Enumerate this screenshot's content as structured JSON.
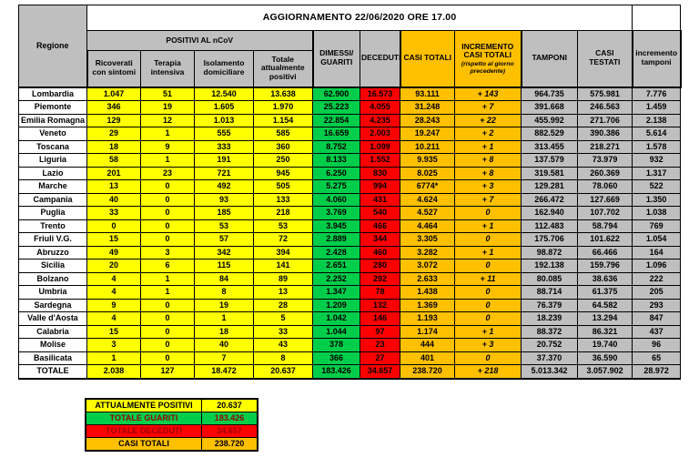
{
  "title": "AGGIORNAMENTO 22/06/2020 ORE 17.00",
  "colors": {
    "gray": "#BFBFBF",
    "yellow": "#FFFF00",
    "green": "#00CE4A",
    "red": "#FF0000",
    "gold": "#FFC000",
    "dark_red_text": "#9C0006",
    "increment_text": "#595959"
  },
  "table": {
    "headers": {
      "regione": "Regione",
      "positivi_group": "POSITIVI AL nCoV",
      "ricoverati": "Ricoverati con sintomi",
      "terapia": "Terapia intensiva",
      "isolamento": "Isolamento domiciliare",
      "totale_positivi": "Totale attualmente positivi",
      "dimessi": "DIMESSI/ GUARITI",
      "deceduti": "DECEDUTI",
      "casi_totali": "CASI TOTALI",
      "incremento_casi": "INCREMENTO CASI TOTALI",
      "incremento_casi_note": "(rispetto al giorno precedente)",
      "tamponi": "TAMPONI",
      "casi_testati": "CASI TESTATI",
      "incremento_tamponi": "incremento tamponi"
    },
    "rows": [
      {
        "regione": "Lombardia",
        "ricoverati": "1.047",
        "terapia": "51",
        "isolamento": "12.540",
        "totale_positivi": "13.638",
        "dimessi": "62.900",
        "deceduti": "16.573",
        "casi_totali": "93.111",
        "incremento": "+ 143",
        "tamponi": "964.735",
        "casi_testati": "575.981",
        "incremento_tamponi": "7.776"
      },
      {
        "regione": "Piemonte",
        "ricoverati": "346",
        "terapia": "19",
        "isolamento": "1.605",
        "totale_positivi": "1.970",
        "dimessi": "25.223",
        "deceduti": "4.055",
        "casi_totali": "31.248",
        "incremento": "+ 7",
        "tamponi": "391.668",
        "casi_testati": "246.563",
        "incremento_tamponi": "1.459"
      },
      {
        "regione": "Emilia Romagna",
        "ricoverati": "129",
        "terapia": "12",
        "isolamento": "1.013",
        "totale_positivi": "1.154",
        "dimessi": "22.854",
        "deceduti": "4.235",
        "casi_totali": "28.243",
        "incremento": "+ 22",
        "tamponi": "455.992",
        "casi_testati": "271.706",
        "incremento_tamponi": "2.138"
      },
      {
        "regione": "Veneto",
        "ricoverati": "29",
        "terapia": "1",
        "isolamento": "555",
        "totale_positivi": "585",
        "dimessi": "16.659",
        "deceduti": "2.003",
        "casi_totali": "19.247",
        "incremento": "+ 2",
        "tamponi": "882.529",
        "casi_testati": "390.386",
        "incremento_tamponi": "5.614"
      },
      {
        "regione": "Toscana",
        "ricoverati": "18",
        "terapia": "9",
        "isolamento": "333",
        "totale_positivi": "360",
        "dimessi": "8.752",
        "deceduti": "1.099",
        "casi_totali": "10.211",
        "incremento": "+ 1",
        "tamponi": "313.455",
        "casi_testati": "218.271",
        "incremento_tamponi": "1.578"
      },
      {
        "regione": "Liguria",
        "ricoverati": "58",
        "terapia": "1",
        "isolamento": "191",
        "totale_positivi": "250",
        "dimessi": "8.133",
        "deceduti": "1.552",
        "casi_totali": "9.935",
        "incremento": "+ 8",
        "tamponi": "137.579",
        "casi_testati": "73.979",
        "incremento_tamponi": "932"
      },
      {
        "regione": "Lazio",
        "ricoverati": "201",
        "terapia": "23",
        "isolamento": "721",
        "totale_positivi": "945",
        "dimessi": "6.250",
        "deceduti": "830",
        "casi_totali": "8.025",
        "incremento": "+ 8",
        "tamponi": "319.581",
        "casi_testati": "260.369",
        "incremento_tamponi": "1.317"
      },
      {
        "regione": "Marche",
        "ricoverati": "13",
        "terapia": "0",
        "isolamento": "492",
        "totale_positivi": "505",
        "dimessi": "5.275",
        "deceduti": "994",
        "casi_totali": "6774*",
        "incremento": "+ 3",
        "tamponi": "129.281",
        "casi_testati": "78.060",
        "incremento_tamponi": "522"
      },
      {
        "regione": "Campania",
        "ricoverati": "40",
        "terapia": "0",
        "isolamento": "93",
        "totale_positivi": "133",
        "dimessi": "4.060",
        "deceduti": "431",
        "casi_totali": "4.624",
        "incremento": "+ 7",
        "tamponi": "266.472",
        "casi_testati": "127.669",
        "incremento_tamponi": "1.350"
      },
      {
        "regione": "Puglia",
        "ricoverati": "33",
        "terapia": "0",
        "isolamento": "185",
        "totale_positivi": "218",
        "dimessi": "3.769",
        "deceduti": "540",
        "casi_totali": "4.527",
        "incremento": "0",
        "tamponi": "162.940",
        "casi_testati": "107.702",
        "incremento_tamponi": "1.038"
      },
      {
        "regione": "Trento",
        "ricoverati": "0",
        "terapia": "0",
        "isolamento": "53",
        "totale_positivi": "53",
        "dimessi": "3.945",
        "deceduti": "466",
        "casi_totali": "4.464",
        "incremento": "+ 1",
        "tamponi": "112.483",
        "casi_testati": "58.794",
        "incremento_tamponi": "769"
      },
      {
        "regione": "Friuli V.G.",
        "ricoverati": "15",
        "terapia": "0",
        "isolamento": "57",
        "totale_positivi": "72",
        "dimessi": "2.889",
        "deceduti": "344",
        "casi_totali": "3.305",
        "incremento": "0",
        "tamponi": "175.706",
        "casi_testati": "101.622",
        "incremento_tamponi": "1.054"
      },
      {
        "regione": "Abruzzo",
        "ricoverati": "49",
        "terapia": "3",
        "isolamento": "342",
        "totale_positivi": "394",
        "dimessi": "2.428",
        "deceduti": "460",
        "casi_totali": "3.282",
        "incremento": "+ 1",
        "tamponi": "98.872",
        "casi_testati": "66.466",
        "incremento_tamponi": "164"
      },
      {
        "regione": "Sicilia",
        "ricoverati": "20",
        "terapia": "6",
        "isolamento": "115",
        "totale_positivi": "141",
        "dimessi": "2.651",
        "deceduti": "280",
        "casi_totali": "3.072",
        "incremento": "0",
        "tamponi": "192.138",
        "casi_testati": "159.796",
        "incremento_tamponi": "1.096"
      },
      {
        "regione": "Bolzano",
        "ricoverati": "4",
        "terapia": "1",
        "isolamento": "84",
        "totale_positivi": "89",
        "dimessi": "2.252",
        "deceduti": "292",
        "casi_totali": "2.633",
        "incremento": "+ 11",
        "tamponi": "80.085",
        "casi_testati": "38.636",
        "incremento_tamponi": "222"
      },
      {
        "regione": "Umbria",
        "ricoverati": "4",
        "terapia": "1",
        "isolamento": "8",
        "totale_positivi": "13",
        "dimessi": "1.347",
        "deceduti": "78",
        "casi_totali": "1.438",
        "incremento": "0",
        "tamponi": "88.714",
        "casi_testati": "61.375",
        "incremento_tamponi": "205"
      },
      {
        "regione": "Sardegna",
        "ricoverati": "9",
        "terapia": "0",
        "isolamento": "19",
        "totale_positivi": "28",
        "dimessi": "1.209",
        "deceduti": "132",
        "casi_totali": "1.369",
        "incremento": "0",
        "tamponi": "76.379",
        "casi_testati": "64.582",
        "incremento_tamponi": "293"
      },
      {
        "regione": "Valle d'Aosta",
        "ricoverati": "4",
        "terapia": "0",
        "isolamento": "1",
        "totale_positivi": "5",
        "dimessi": "1.042",
        "deceduti": "146",
        "casi_totali": "1.193",
        "incremento": "0",
        "tamponi": "18.239",
        "casi_testati": "13.294",
        "incremento_tamponi": "847"
      },
      {
        "regione": "Calabria",
        "ricoverati": "15",
        "terapia": "0",
        "isolamento": "18",
        "totale_positivi": "33",
        "dimessi": "1.044",
        "deceduti": "97",
        "casi_totali": "1.174",
        "incremento": "+ 1",
        "tamponi": "88.372",
        "casi_testati": "86.321",
        "incremento_tamponi": "437"
      },
      {
        "regione": "Molise",
        "ricoverati": "3",
        "terapia": "0",
        "isolamento": "40",
        "totale_positivi": "43",
        "dimessi": "378",
        "deceduti": "23",
        "casi_totali": "444",
        "incremento": "+ 3",
        "tamponi": "20.752",
        "casi_testati": "19.740",
        "incremento_tamponi": "96"
      },
      {
        "regione": "Basilicata",
        "ricoverati": "1",
        "terapia": "0",
        "isolamento": "7",
        "totale_positivi": "8",
        "dimessi": "366",
        "deceduti": "27",
        "casi_totali": "401",
        "incremento": "0",
        "tamponi": "37.370",
        "casi_testati": "36.590",
        "incremento_tamponi": "65"
      },
      {
        "regione": "TOTALE",
        "ricoverati": "2.038",
        "terapia": "127",
        "isolamento": "18.472",
        "totale_positivi": "20.637",
        "dimessi": "183.426",
        "deceduti": "34.657",
        "casi_totali": "238.720",
        "incremento": "+ 218",
        "tamponi": "5.013.342",
        "casi_testati": "3.057.902",
        "incremento_tamponi": "28.972"
      }
    ]
  },
  "legend": [
    {
      "label": "ATTUALMENTE POSITIVI",
      "value": "20.637",
      "bg": "#FFFF00",
      "fg": "#000000"
    },
    {
      "label": "TOTALE GUARITI",
      "value": "183.426",
      "bg": "#00CE4A",
      "fg": "#9C0006"
    },
    {
      "label": "TOTALE DECEDUTI",
      "value": "34.657",
      "bg": "#FF0000",
      "fg": "#9C0006"
    },
    {
      "label": "CASI TOTALI",
      "value": "238.720",
      "bg": "#FFC000",
      "fg": "#000000"
    }
  ]
}
